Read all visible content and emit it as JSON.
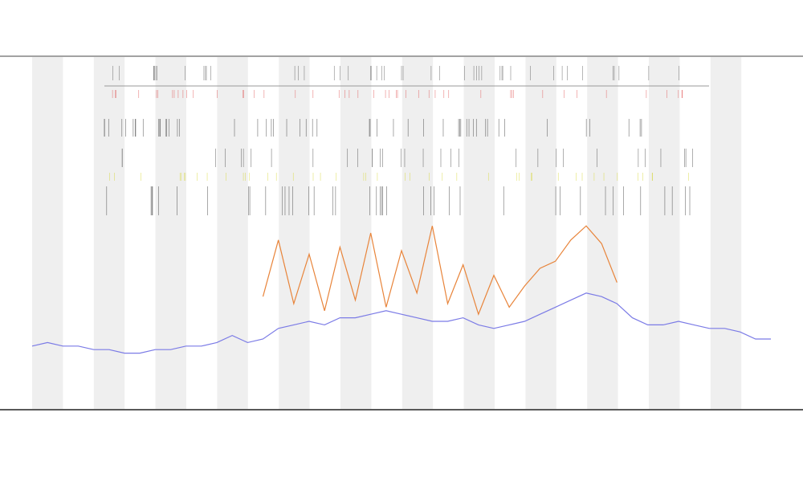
{
  "chart_data": {
    "type": "line",
    "x": [
      0,
      1,
      2,
      3,
      4,
      5,
      6,
      7,
      8,
      9,
      10,
      11,
      12,
      13,
      14,
      15,
      16,
      17,
      18,
      19,
      20,
      21,
      22,
      23,
      24,
      25,
      26,
      27,
      28,
      29,
      30,
      31,
      32,
      33,
      34,
      35,
      36,
      37,
      38,
      39,
      40,
      41,
      42,
      43,
      44,
      45,
      46,
      47,
      48
    ],
    "xlim": [
      0,
      48
    ],
    "ylim": [
      0,
      100
    ],
    "series": [
      {
        "color": "#7b7be6",
        "values": [
          18,
          19,
          18,
          18,
          17,
          17,
          16,
          16,
          17,
          17,
          18,
          18,
          19,
          21,
          19,
          20,
          23,
          24,
          25,
          24,
          26,
          26,
          27,
          28,
          27,
          26,
          25,
          25,
          26,
          24,
          23,
          24,
          25,
          27,
          29,
          31,
          33,
          32,
          30,
          26,
          24,
          24,
          25,
          24,
          23,
          23,
          22,
          20,
          20
        ]
      },
      {
        "color": "#e8843a",
        "values": [
          null,
          null,
          null,
          null,
          null,
          null,
          null,
          null,
          null,
          null,
          null,
          null,
          null,
          null,
          null,
          32,
          48,
          30,
          44,
          28,
          46,
          31,
          50,
          29,
          45,
          33,
          52,
          30,
          41,
          27,
          38,
          29,
          35,
          40,
          42,
          48,
          52,
          47,
          36,
          null,
          null,
          null,
          null,
          null,
          null,
          null,
          null,
          null,
          null
        ]
      }
    ]
  }
}
